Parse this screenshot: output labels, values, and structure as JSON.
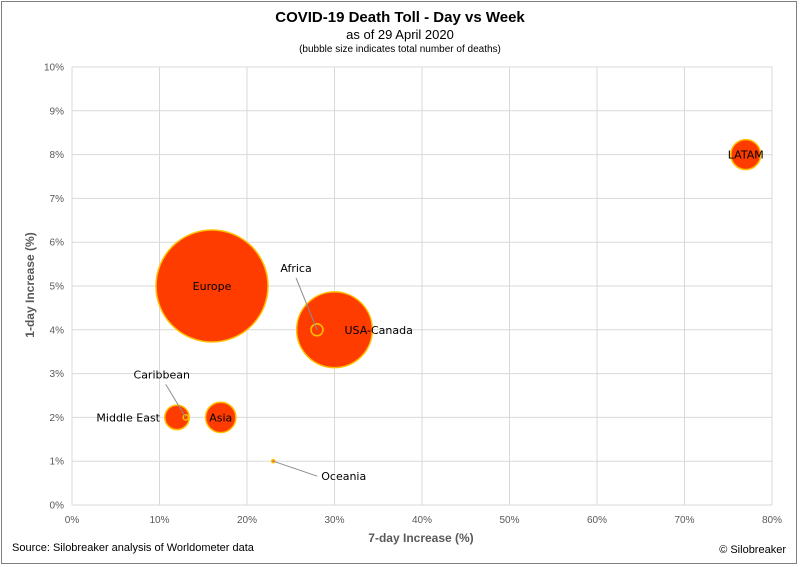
{
  "chart_data": {
    "type": "scatter",
    "title": "COVID-19 Death Toll - Day vs Week",
    "subtitle": "as of 29 April 2020",
    "note": "(bubble size indicates total number of deaths)",
    "xlabel": "7-day Increase (%)",
    "ylabel": "1-day Increase (%)",
    "xlim": [
      0,
      80
    ],
    "ylim": [
      0,
      10
    ],
    "xticks": [
      "0%",
      "10%",
      "20%",
      "30%",
      "40%",
      "50%",
      "60%",
      "70%",
      "80%"
    ],
    "yticks": [
      "0%",
      "1%",
      "2%",
      "3%",
      "4%",
      "5%",
      "6%",
      "7%",
      "8%",
      "9%",
      "10%"
    ],
    "grid": true,
    "bubble_color": "#ff3c00",
    "bubble_border": "#ffc000",
    "series": [
      {
        "points": [
          {
            "label": "Europe",
            "x": 16,
            "y": 5,
            "size": 140000
          },
          {
            "label": "USA-Canada",
            "x": 30,
            "y": 4,
            "size": 64000
          },
          {
            "label": "LATAM",
            "x": 77,
            "y": 8,
            "size": 10000
          },
          {
            "label": "Asia",
            "x": 17,
            "y": 2,
            "size": 10300
          },
          {
            "label": "Middle East",
            "x": 12,
            "y": 2,
            "size": 6700
          },
          {
            "label": "Africa",
            "x": 28,
            "y": 4,
            "size": 1600
          },
          {
            "label": "Caribbean",
            "x": 13,
            "y": 2,
            "size": 300
          },
          {
            "label": "Oceania",
            "x": 23,
            "y": 1,
            "size": 100
          }
        ]
      }
    ]
  },
  "footer": {
    "source": "Source: Silobreaker analysis of Worldometer data",
    "copyright": "© Silobreaker"
  }
}
